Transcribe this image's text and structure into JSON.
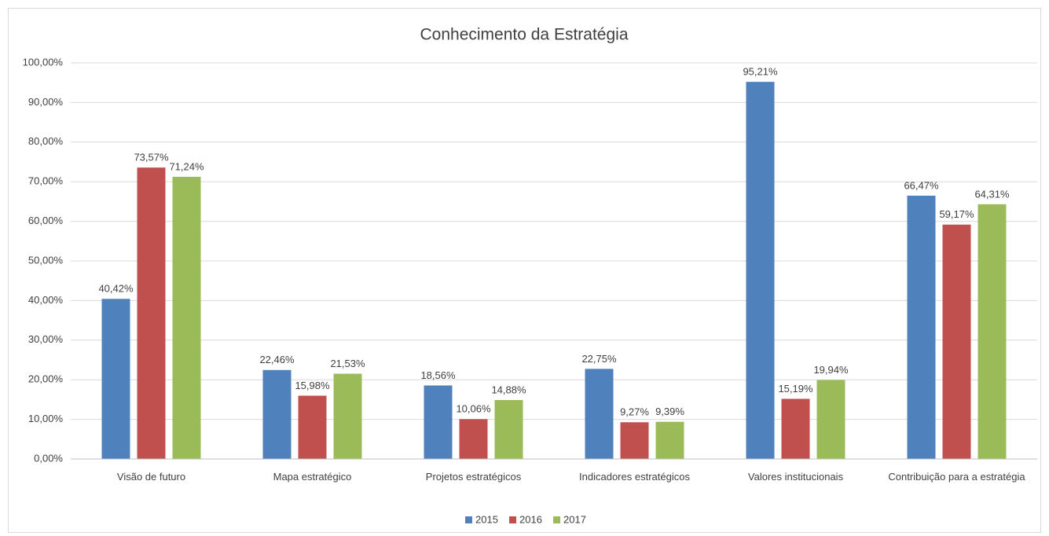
{
  "chart_data": {
    "type": "bar",
    "title": "Conhecimento da Estratégia",
    "categories": [
      "Visão de futuro",
      "Mapa estratégico",
      "Projetos estratégicos",
      "Indicadores estratégicos",
      "Valores institucionais",
      "Contribuição para a estratégia"
    ],
    "series": [
      {
        "name": "2015",
        "color": "#4f81bd",
        "values": [
          40.42,
          22.46,
          18.56,
          22.75,
          95.21,
          66.47
        ],
        "value_labels": [
          "40,42%",
          "22,46%",
          "18,56%",
          "22,75%",
          "95,21%",
          "66,47%"
        ]
      },
      {
        "name": "2016",
        "color": "#c0504d",
        "values": [
          73.57,
          15.98,
          10.06,
          9.27,
          15.19,
          59.17
        ],
        "value_labels": [
          "73,57%",
          "15,98%",
          "10,06%",
          "9,27%",
          "15,19%",
          "59,17%"
        ]
      },
      {
        "name": "2017",
        "color": "#9bbb59",
        "values": [
          71.24,
          21.53,
          14.88,
          9.39,
          19.94,
          64.31
        ],
        "value_labels": [
          "71,24%",
          "21,53%",
          "14,88%",
          "9,39%",
          "19,94%",
          "64,31%"
        ]
      }
    ],
    "ylim": [
      0,
      100
    ],
    "yticks": [
      {
        "value": 0,
        "label": "0,00%"
      },
      {
        "value": 10,
        "label": "10,00%"
      },
      {
        "value": 20,
        "label": "20,00%"
      },
      {
        "value": 30,
        "label": "30,00%"
      },
      {
        "value": 40,
        "label": "40,00%"
      },
      {
        "value": 50,
        "label": "50,00%"
      },
      {
        "value": 60,
        "label": "60,00%"
      },
      {
        "value": 70,
        "label": "70,00%"
      },
      {
        "value": 80,
        "label": "80,00%"
      },
      {
        "value": 90,
        "label": "90,00%"
      },
      {
        "value": 100,
        "label": "100,00%"
      }
    ],
    "grid": true,
    "legend": "bottom"
  }
}
